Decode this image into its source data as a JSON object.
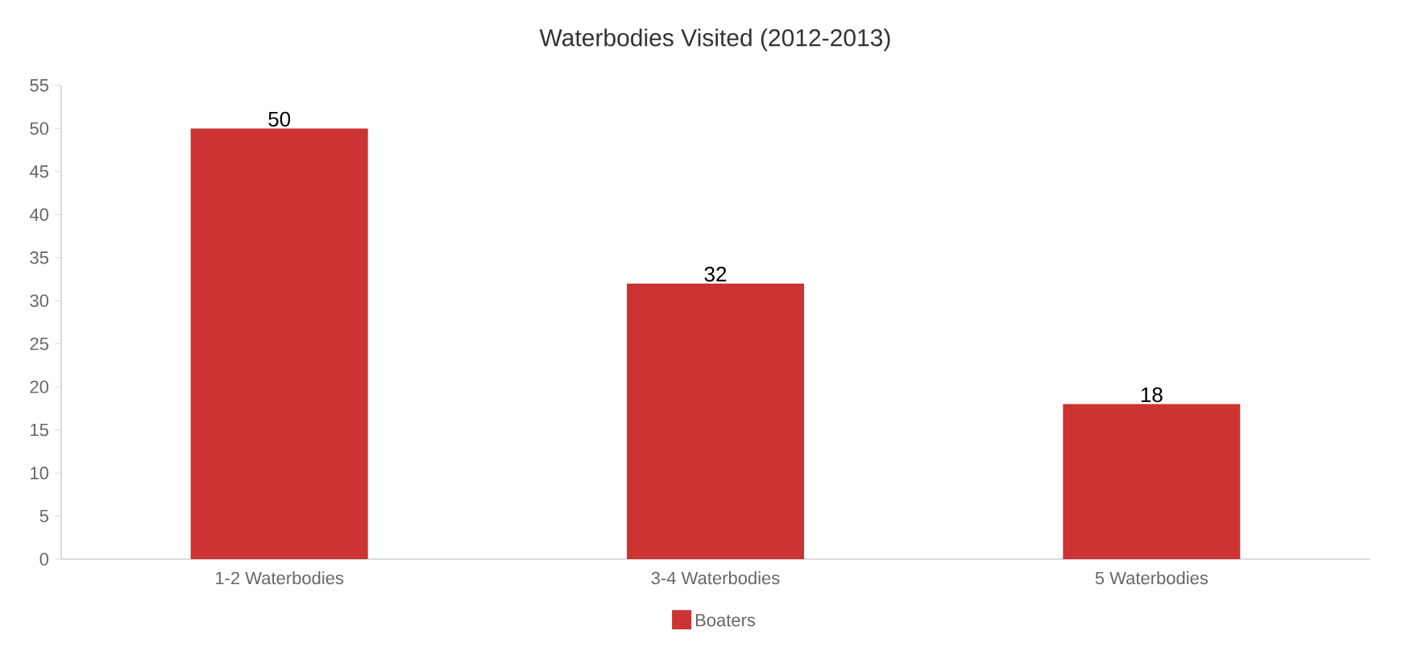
{
  "chart_data": {
    "type": "bar",
    "title": "Waterbodies Visited (2012-2013)",
    "categories": [
      "1-2 Waterbodies",
      "3-4 Waterbodies",
      "5 Waterbodies"
    ],
    "series": [
      {
        "name": "Boaters",
        "color": "#cc3333",
        "values": [
          50,
          32,
          18
        ]
      }
    ],
    "ylim": [
      0,
      55
    ],
    "yticks": [
      0,
      5,
      10,
      15,
      20,
      25,
      30,
      35,
      40,
      45,
      50,
      55
    ],
    "data_labels": true,
    "legend": "bottom",
    "grid": false
  }
}
